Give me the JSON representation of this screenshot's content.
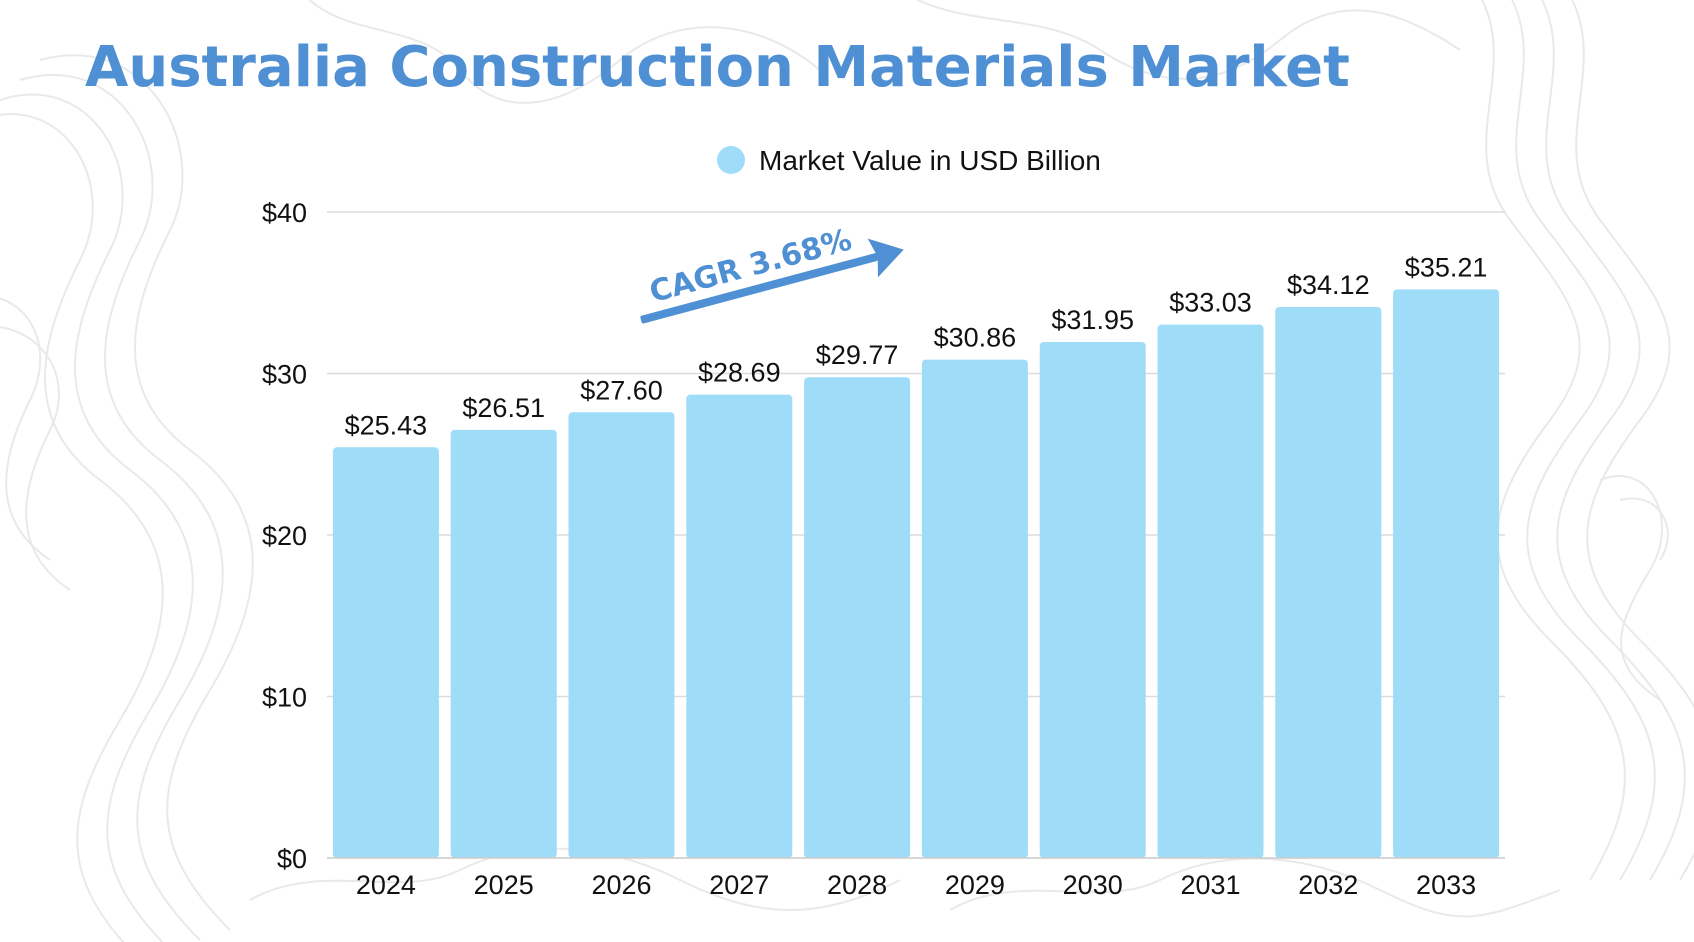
{
  "title": "Australia Construction Materials Market",
  "legend": {
    "label": "Market Value in USD Billion"
  },
  "annotation": {
    "text": "CAGR 3.68%"
  },
  "colors": {
    "title": "#4f8fd3",
    "bar": "#9edcf8",
    "legend_dot": "#9edcf8",
    "arrow": "#4f8fd3",
    "grid": "#dcdcdc",
    "text": "#111111"
  },
  "chart_data": {
    "type": "bar",
    "categories": [
      "2024",
      "2025",
      "2026",
      "2027",
      "2028",
      "2029",
      "2030",
      "2031",
      "2032",
      "2033"
    ],
    "series": [
      {
        "name": "Market Value in USD Billion",
        "values": [
          25.43,
          26.51,
          27.6,
          28.69,
          29.77,
          30.86,
          31.95,
          33.03,
          34.12,
          35.21
        ],
        "labels": [
          "$25.43",
          "$26.51",
          "$27.60",
          "$28.69",
          "$29.77",
          "$30.86",
          "$31.95",
          "$33.03",
          "$34.12",
          "$35.21"
        ]
      }
    ],
    "y_ticks": [
      0,
      10,
      20,
      30,
      40
    ],
    "y_tick_labels": [
      "$0",
      "$10",
      "$20",
      "$30",
      "$40"
    ],
    "ylim": [
      0,
      40
    ],
    "grid": true,
    "legend_position": "top-center"
  }
}
